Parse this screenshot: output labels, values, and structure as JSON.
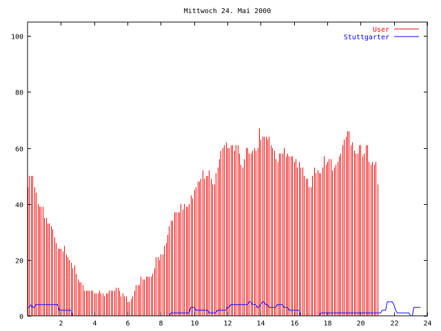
{
  "chart_data": {
    "type": "bar",
    "title": "Mittwoch 24. Mai 2000",
    "xlabel": "",
    "ylabel": "",
    "xlim": [
      0,
      24
    ],
    "ylim": [
      0,
      105
    ],
    "x_ticks": [
      2,
      4,
      6,
      8,
      10,
      12,
      14,
      16,
      18,
      20,
      22,
      24
    ],
    "x_tick_labels": [
      "2",
      "4",
      "6",
      "8",
      "10",
      "12",
      "14",
      "16",
      "18",
      "20",
      "22",
      "24"
    ],
    "y_ticks": [
      0,
      20,
      40,
      60,
      80,
      100
    ],
    "y_tick_labels": [
      "0",
      "20",
      "40",
      "60",
      "80",
      "100"
    ],
    "sample_interval_hours": 0.1,
    "grid": false,
    "legend_position": "top-right",
    "series": [
      {
        "name": "User",
        "style": "impulses",
        "color": "#ff0000",
        "values": [
          46,
          50,
          50,
          50,
          46,
          44,
          40,
          39,
          39,
          39,
          35,
          35,
          33,
          33,
          32,
          31,
          28,
          26,
          24,
          24,
          24,
          23,
          25,
          22,
          21,
          20,
          19,
          17,
          18,
          15,
          13,
          12,
          12,
          11,
          9,
          9,
          9,
          9,
          9,
          9,
          8,
          8,
          8,
          9,
          8,
          8,
          7,
          8,
          8,
          9,
          9,
          9,
          9,
          10,
          10,
          9,
          7,
          8,
          7,
          7,
          5,
          5,
          6,
          7,
          9,
          11,
          11,
          11,
          14,
          13,
          13,
          14,
          14,
          14,
          14,
          15,
          17,
          21,
          21,
          20,
          22,
          22,
          25,
          26,
          29,
          32,
          34,
          34,
          37,
          37,
          37,
          37,
          40,
          38,
          40,
          39,
          39,
          40,
          43,
          42,
          45,
          46,
          48,
          48,
          49,
          52,
          49,
          50,
          50,
          52,
          49,
          47,
          47,
          51,
          53,
          56,
          59,
          60,
          61,
          62,
          60,
          60,
          61,
          61,
          59,
          61,
          61,
          58,
          54,
          53,
          56,
          60,
          60,
          58,
          58,
          59,
          60,
          59,
          60,
          67,
          63,
          64,
          64,
          64,
          63,
          64,
          61,
          60,
          59,
          56,
          55,
          58,
          58,
          58,
          60,
          57,
          58,
          57,
          57,
          57,
          55,
          56,
          53,
          55,
          53,
          53,
          50,
          49,
          49,
          46,
          46,
          50,
          53,
          51,
          52,
          51,
          51,
          53,
          57,
          54,
          55,
          56,
          56,
          52,
          53,
          54,
          55,
          57,
          58,
          61,
          63,
          64,
          66,
          66,
          61,
          62,
          59,
          58,
          58,
          61,
          61,
          57,
          58,
          61,
          61,
          55,
          54,
          55,
          54,
          55,
          47
        ]
      },
      {
        "name": "Stuttgarter",
        "style": "lines",
        "color": "#0000ff",
        "values": [
          3,
          3,
          4,
          3,
          3,
          4,
          4,
          4,
          4,
          4,
          4,
          4,
          4,
          4,
          4,
          4,
          4,
          4,
          4,
          2,
          2,
          2,
          2,
          2,
          2,
          2,
          2,
          0,
          0,
          0,
          0,
          0,
          0,
          0,
          0,
          0,
          0,
          0,
          0,
          0,
          0,
          0,
          0,
          0,
          0,
          0,
          0,
          0,
          0,
          0,
          0,
          0,
          0,
          0,
          0,
          0,
          0,
          0,
          0,
          0,
          0,
          0,
          0,
          0,
          0,
          0,
          0,
          0,
          0,
          0,
          0,
          0,
          0,
          0,
          0,
          0,
          0,
          0,
          0,
          0,
          0,
          0,
          0,
          0,
          0,
          0,
          1,
          1,
          1,
          1,
          1,
          1,
          1,
          1,
          1,
          1,
          1,
          1,
          3,
          3,
          3,
          2,
          2,
          2,
          2,
          2,
          2,
          2,
          2,
          1,
          1,
          1,
          1,
          1,
          2,
          2,
          2,
          2,
          2,
          2,
          3,
          3,
          4,
          4,
          4,
          4,
          4,
          4,
          4,
          4,
          4,
          4,
          4,
          5,
          5,
          4,
          4,
          4,
          3,
          3,
          4,
          5,
          5,
          4,
          4,
          3,
          3,
          3,
          3,
          3,
          4,
          4,
          4,
          4,
          3,
          3,
          3,
          2,
          2,
          2,
          2,
          2,
          2,
          2,
          0,
          0,
          0,
          0,
          0,
          0,
          0,
          0,
          0,
          0,
          0,
          0,
          1,
          1,
          1,
          1,
          1,
          1,
          1,
          1,
          1,
          1,
          1,
          1,
          1,
          1,
          1,
          1,
          1,
          1,
          1,
          1,
          1,
          1,
          1,
          1,
          1,
          1,
          1,
          1,
          1,
          1,
          1,
          1,
          1,
          1,
          1,
          1,
          1,
          2,
          2,
          2,
          5,
          5,
          5,
          5,
          4,
          2,
          1,
          1,
          1,
          1,
          1,
          1,
          1,
          1,
          0,
          0,
          3,
          3,
          3,
          3,
          3
        ]
      }
    ]
  }
}
